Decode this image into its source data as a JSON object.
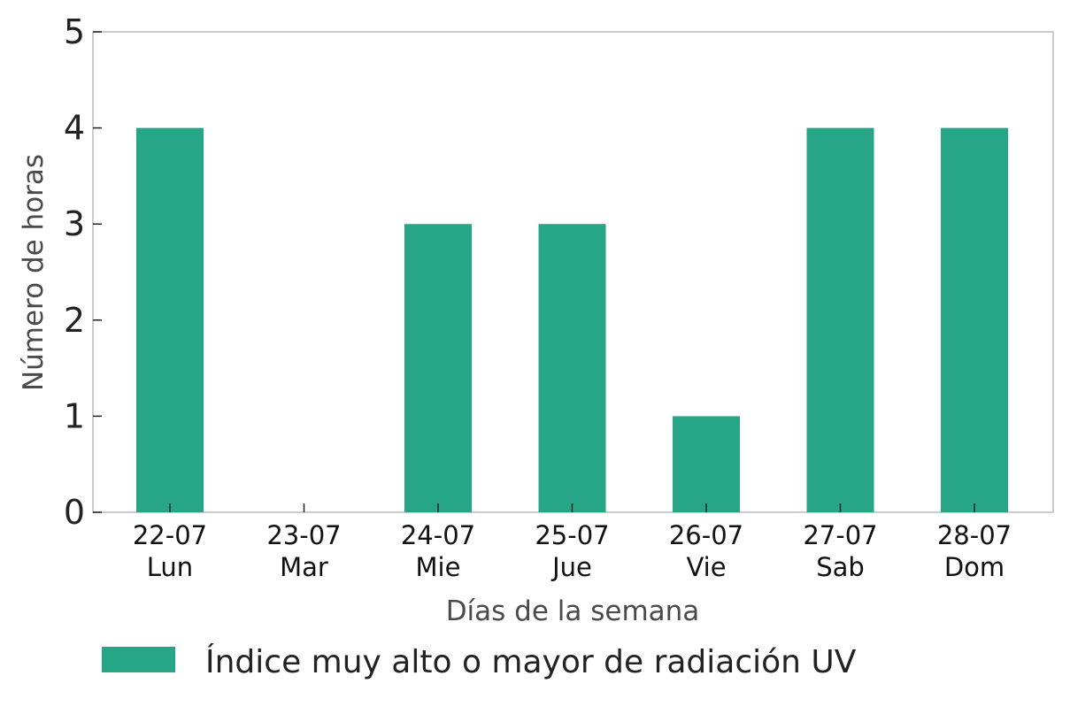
{
  "chart_data": {
    "type": "bar",
    "categories": [
      {
        "date": "22-07",
        "day": "Lun"
      },
      {
        "date": "23-07",
        "day": "Mar"
      },
      {
        "date": "24-07",
        "day": "Mie"
      },
      {
        "date": "25-07",
        "day": "Jue"
      },
      {
        "date": "26-07",
        "day": "Vie"
      },
      {
        "date": "27-07",
        "day": "Sab"
      },
      {
        "date": "28-07",
        "day": "Dom"
      }
    ],
    "series": [
      {
        "name": "Índice muy alto o mayor de radiación UV",
        "color": "#27a687",
        "values": [
          4,
          0,
          3,
          3,
          1,
          4,
          4
        ]
      }
    ],
    "xlabel": "Días de la semana",
    "ylabel": "Número de horas",
    "ylim": [
      0,
      5
    ],
    "yticks": [
      0,
      1,
      2,
      3,
      4,
      5
    ],
    "grid": false,
    "legend_position": "bottom"
  }
}
